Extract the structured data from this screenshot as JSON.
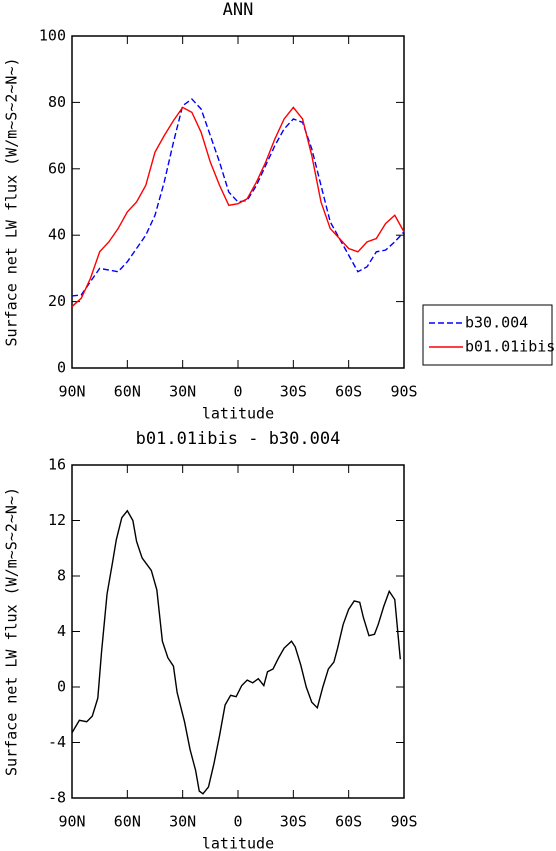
{
  "chart_data": [
    {
      "type": "line",
      "title": "ANN",
      "xlabel": "latitude",
      "ylabel": "Surface net LW flux (W/m~S~2~N~)",
      "x": [
        90,
        85,
        80,
        75,
        70,
        65,
        60,
        55,
        50,
        45,
        40,
        35,
        30,
        25,
        20,
        15,
        10,
        5,
        0,
        -5,
        -10,
        -15,
        -20,
        -25,
        -30,
        -35,
        -40,
        -45,
        -50,
        -55,
        -60,
        -65,
        -70,
        -75,
        -80,
        -85,
        -90
      ],
      "series": [
        {
          "name": "b30.004",
          "color": "#0000ff",
          "style": "dashed",
          "values": [
            21.7,
            22,
            26,
            30,
            29.5,
            29,
            32,
            36,
            40,
            46,
            56,
            68,
            79,
            81,
            78,
            70,
            62,
            53,
            50,
            50.5,
            55,
            61,
            67,
            72,
            75,
            74,
            66,
            55,
            44,
            39,
            34,
            29,
            30.5,
            35,
            35.5,
            38,
            41
          ]
        },
        {
          "name": "b01.01ibis",
          "color": "#ff0000",
          "style": "solid",
          "values": [
            18.5,
            21,
            27,
            35,
            38,
            42,
            47,
            50,
            55,
            65,
            70,
            74.5,
            78.5,
            77,
            71,
            62,
            55,
            49,
            49.5,
            51,
            56,
            62,
            69,
            75,
            78.5,
            75,
            64,
            50,
            42,
            39,
            36,
            35,
            38,
            39,
            43.5,
            46,
            41
          ]
        }
      ],
      "xlim": [
        90,
        -90
      ],
      "xticks": [
        {
          "value": 90,
          "label": "90N"
        },
        {
          "value": 60,
          "label": "60N"
        },
        {
          "value": 30,
          "label": "30N"
        },
        0,
        {
          "value": -30,
          "label": "30S"
        },
        {
          "value": -60,
          "label": "60S"
        },
        {
          "value": -90,
          "label": "90S"
        }
      ],
      "ylim": [
        0,
        100
      ],
      "yticks": [
        0,
        20,
        40,
        60,
        80,
        100
      ],
      "legend": "outside-right"
    },
    {
      "type": "line",
      "title": "b01.01ibis - b30.004",
      "xlabel": "latitude",
      "ylabel": "Surface net LW flux (W/m~S~2~N~)",
      "x": [
        90,
        86,
        82,
        79,
        76,
        74,
        71,
        68,
        66,
        63,
        60,
        57,
        55,
        52,
        47,
        44,
        41,
        38,
        35,
        33,
        29,
        26,
        23,
        21,
        19,
        16,
        13,
        10,
        7,
        4,
        1,
        -2,
        -5,
        -8,
        -11,
        -14,
        -16,
        -19,
        -22,
        -25,
        -29,
        -31,
        -34,
        -37,
        -40,
        -43,
        -46,
        -49,
        -52,
        -54,
        -57,
        -60,
        -63,
        -66,
        -68,
        -71,
        -74,
        -76,
        -79,
        -82,
        -85,
        -88
      ],
      "series": [
        {
          "color": "#000000",
          "style": "solid",
          "values": [
            -3.3,
            -2.4,
            -2.5,
            -2.1,
            -0.8,
            2.5,
            6.7,
            9,
            10.6,
            12.2,
            12.7,
            12,
            10.5,
            9.3,
            8.4,
            7,
            3.3,
            2.1,
            1.5,
            -0.4,
            -2.5,
            -4.5,
            -6,
            -7.5,
            -7.7,
            -7.2,
            -5.5,
            -3.5,
            -1.3,
            -0.6,
            -0.7,
            0.1,
            0.5,
            0.3,
            0.6,
            0.1,
            1.1,
            1.3,
            2.1,
            2.8,
            3.3,
            2.9,
            1.6,
            0,
            -1.1,
            -1.5,
            0,
            1.3,
            1.8,
            2.8,
            4.5,
            5.6,
            6.2,
            6.1,
            5,
            3.7,
            3.8,
            4.5,
            5.8,
            6.9,
            6.3,
            2
          ]
        }
      ],
      "xlim": [
        90,
        -90
      ],
      "xticks": [
        {
          "value": 90,
          "label": "90N"
        },
        {
          "value": 60,
          "label": "60N"
        },
        {
          "value": 30,
          "label": "30N"
        },
        0,
        {
          "value": -30,
          "label": "30S"
        },
        {
          "value": -60,
          "label": "60S"
        },
        {
          "value": -90,
          "label": "90S"
        }
      ],
      "ylim": [
        -8,
        16
      ],
      "yticks": [
        -8,
        -4,
        0,
        4,
        8,
        12,
        16
      ]
    }
  ]
}
